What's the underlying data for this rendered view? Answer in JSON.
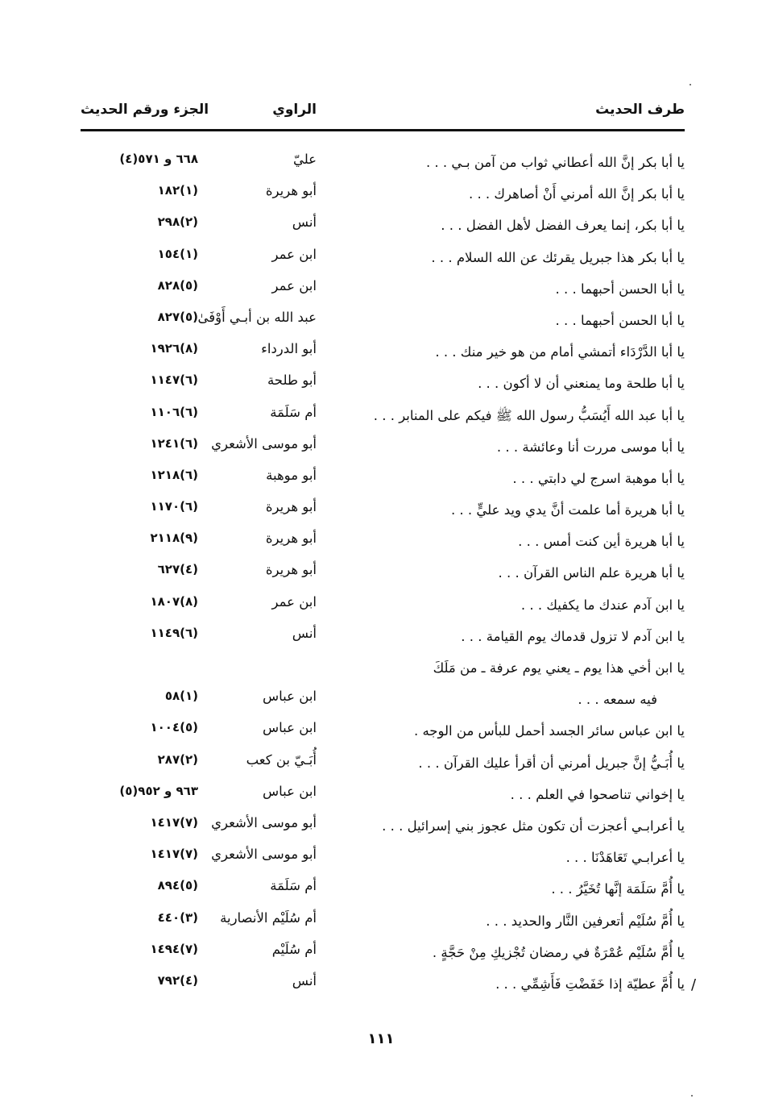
{
  "header": {
    "col_hadith": "طرف الحديث",
    "col_narrator": "الراوي",
    "col_ref": "الجزء ورقم الحديث"
  },
  "rows": [
    {
      "text": "يا أبا بكر إنَّ الله أعطاني ثواب من آمن بـي . . .",
      "narrator": "عليّ",
      "ref": "(٤)٥٧١ و ٦٦٨"
    },
    {
      "text": "يا أبا بكر إنَّ الله أمرني أَنْ أصاهرك . . .",
      "narrator": "أبو هريرة",
      "ref": "١٨٢(١)"
    },
    {
      "text": "يا أبا بكر، إنما يعرف الفضل لأهل الفضل . . .",
      "narrator": "أنس",
      "ref": "٢٩٨(٢)"
    },
    {
      "text": "يا أبا بكر هذا جبريل يقرئك عن الله السلام . . .",
      "narrator": "ابن عمر",
      "ref": "١٥٤(١)"
    },
    {
      "text": "يا أبا الحسن أحبهما . . .",
      "narrator": "ابن عمر",
      "ref": "٨٢٨(٥)"
    },
    {
      "text": "يا أبا الحسن أحبهما . . .",
      "narrator": "عبد الله بن أبـي أَوْفَىٰ",
      "ref": "٨٢٧(٥)"
    },
    {
      "text": "يا أبا الدَّرْدَاء أتمشي أمام من هو خير منك . . .",
      "narrator": "أبو الدرداء",
      "ref": "١٩٢٦(٨)"
    },
    {
      "text": "يا أبا طلحة وما يمنعني أن لا أكون . . .",
      "narrator": "أبو طلحة",
      "ref": "١١٤٧(٦)"
    },
    {
      "text": "يا أبا عبد الله أَيُسَبُّ رسول الله ﷺ فيكم على المنابر . . .",
      "narrator": "أم سَلَمَة",
      "ref": "١١٠٦(٦)"
    },
    {
      "text": "يا أبا موسى مررت أنا وعائشة . . .",
      "narrator": "أبو موسى الأشعري",
      "ref": "١٢٤١(٦)"
    },
    {
      "text": "يا أبا موهبة اسرج لي دابتي . . .",
      "narrator": "أبو موهبة",
      "ref": "١٢١٨(٦)"
    },
    {
      "text": "يا أبا هريرة أما علمت أنَّ يدي ويد عليٍّ . . .",
      "narrator": "أبو هريرة",
      "ref": "١١٧٠(٦)"
    },
    {
      "text": "يا أبا هريرة أين كنت أمس . . .",
      "narrator": "أبو هريرة",
      "ref": "٢١١٨(٩)"
    },
    {
      "text": "يا أبا هريرة علم الناس القرآن . . .",
      "narrator": "أبو هريرة",
      "ref": "٦٢٧(٤)"
    },
    {
      "text": "يا ابن آدم عندك ما يكفيك . . .",
      "narrator": "ابن عمر",
      "ref": "١٨٠٧(٨)"
    },
    {
      "text": "يا ابن آدم لا تزول قدماك يوم القيامة . . .",
      "narrator": "أنس",
      "ref": "١١٤٩(٦)"
    },
    {
      "text": "يا ابن أخي هذا يوم ـ يعني يوم عرفة ـ من مَلَكَ",
      "text2": "فيه سمعه . . .",
      "narrator": "ابن عباس",
      "ref": "٥٨(١)"
    },
    {
      "text": "يا ابن عباس سائر الجسد أحمل للبأس من الوجه .",
      "narrator": "ابن عباس",
      "ref": "١٠٠٤(٥)"
    },
    {
      "text": "يا أُبَـيُّ إنَّ جبريل أمرني أن أقرأ عليك القرآن . . .",
      "narrator": "أُبَـيّ بن كعب",
      "ref": "٢٨٧(٢)"
    },
    {
      "text": "يا إخواني تناصحوا في العلم . . .",
      "narrator": "ابن عباس",
      "ref": "(٥)٩٥٢ و ٩٦٣"
    },
    {
      "text": "يا أعرابـي أعجزت أن تكون مثل عجوز بني إسرائيل . . .",
      "narrator": "أبو موسى الأشعري",
      "ref": "١٤١٧(٧)"
    },
    {
      "text": "يا أعرابـي تَعَاهَدْنَا . . .",
      "narrator": "أبو موسى الأشعري",
      "ref": "١٤١٧(٧)"
    },
    {
      "text": "يا أُمَّ سَلَمَة إنَّها تُخَيَّرُ . . .",
      "narrator": "أم سَلَمَة",
      "ref": "٨٩٤(٥)"
    },
    {
      "text": "يا أُمَّ سُلَيْم أتعرفين النَّار والحديد . . .",
      "narrator": "أم سُلَيْم الأنصارية",
      "ref": "٤٤٠(٣)"
    },
    {
      "text": "يا أُمَّ سُلَيْم عُمْرَةٌ في رمضان تُجْزيكِ مِنْ حَجَّةٍ .",
      "narrator": "أم سُلَيْم",
      "ref": "١٤٩٤(٧)"
    },
    {
      "text": "يا أُمَّ عطيّة إذا خَفَضْتِ فَأَشِمِّي . . .",
      "narrator": "أنس",
      "ref": "٧٩٢(٤)",
      "mark": "/"
    }
  ],
  "page_number": "١١١"
}
